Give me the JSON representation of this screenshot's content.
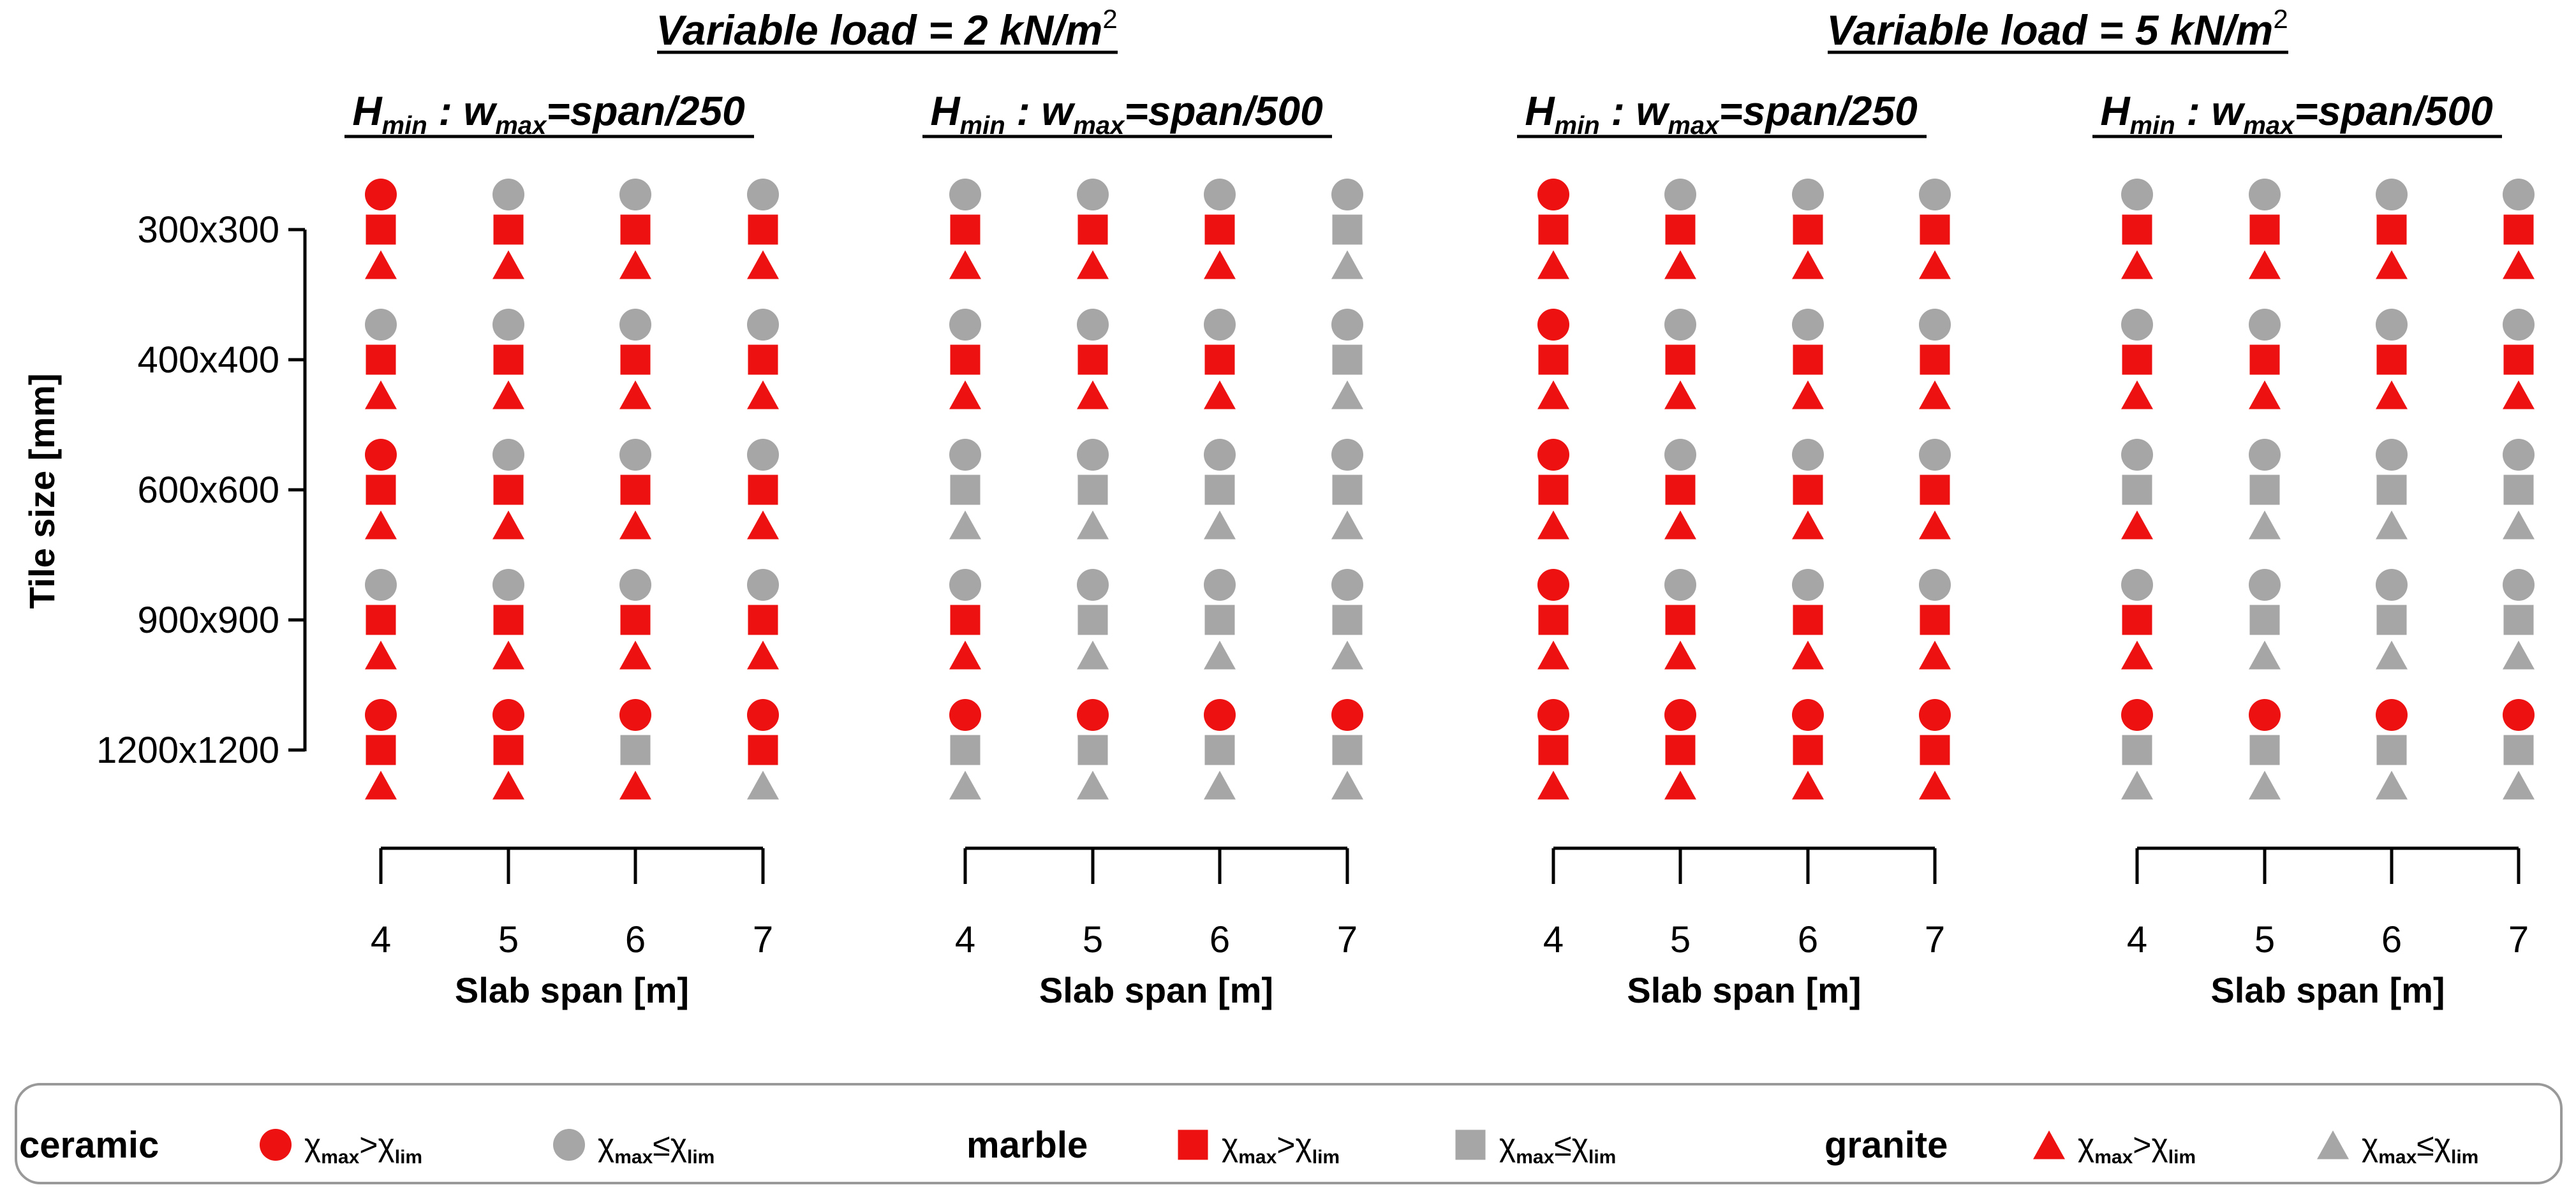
{
  "chart_data": {
    "type": "scatter",
    "description_y": "Tile size [mm]",
    "ylabel": "Tile size [mm]",
    "xlabel": "Slab span [m]",
    "tile_sizes": [
      "300x300",
      "400x400",
      "600x600",
      "900x900",
      "1200x1200"
    ],
    "spans": [
      "4",
      "5",
      "6",
      "7"
    ],
    "groups": [
      {
        "title_prefix": "Variable load = ",
        "title_value": "2 kN/m",
        "title_sup": "2"
      },
      {
        "title_prefix": "Variable load = ",
        "title_value": "5 kN/m",
        "title_sup": "2"
      }
    ],
    "panels": [
      {
        "group": 0,
        "criterion": {
          "h": "H",
          "h_sub": "min",
          "mid": " : w",
          "w_sub": "max",
          "rest": "=span/250"
        },
        "ceramic": [
          [
            1,
            0,
            0,
            0
          ],
          [
            0,
            0,
            0,
            0
          ],
          [
            1,
            0,
            0,
            0
          ],
          [
            0,
            0,
            0,
            0
          ],
          [
            1,
            1,
            1,
            1
          ]
        ],
        "marble": [
          [
            1,
            1,
            1,
            1
          ],
          [
            1,
            1,
            1,
            1
          ],
          [
            1,
            1,
            1,
            1
          ],
          [
            1,
            1,
            1,
            1
          ],
          [
            1,
            1,
            0,
            1
          ]
        ],
        "granite": [
          [
            1,
            1,
            1,
            1
          ],
          [
            1,
            1,
            1,
            1
          ],
          [
            1,
            1,
            1,
            1
          ],
          [
            1,
            1,
            1,
            1
          ],
          [
            1,
            1,
            1,
            0
          ]
        ]
      },
      {
        "group": 0,
        "criterion": {
          "h": "H",
          "h_sub": "min",
          "mid": " : w",
          "w_sub": "max",
          "rest": "=span/500"
        },
        "ceramic": [
          [
            0,
            0,
            0,
            0
          ],
          [
            0,
            0,
            0,
            0
          ],
          [
            0,
            0,
            0,
            0
          ],
          [
            0,
            0,
            0,
            0
          ],
          [
            1,
            1,
            1,
            1
          ]
        ],
        "marble": [
          [
            1,
            1,
            1,
            0
          ],
          [
            1,
            1,
            1,
            0
          ],
          [
            0,
            0,
            0,
            0
          ],
          [
            1,
            0,
            0,
            0
          ],
          [
            0,
            0,
            0,
            0
          ]
        ],
        "granite": [
          [
            1,
            1,
            1,
            0
          ],
          [
            1,
            1,
            1,
            0
          ],
          [
            0,
            0,
            0,
            0
          ],
          [
            1,
            0,
            0,
            0
          ],
          [
            0,
            0,
            0,
            0
          ]
        ]
      },
      {
        "group": 1,
        "criterion": {
          "h": "H",
          "h_sub": "min",
          "mid": " : w",
          "w_sub": "max",
          "rest": "=span/250"
        },
        "ceramic": [
          [
            1,
            0,
            0,
            0
          ],
          [
            1,
            0,
            0,
            0
          ],
          [
            1,
            0,
            0,
            0
          ],
          [
            1,
            0,
            0,
            0
          ],
          [
            1,
            1,
            1,
            1
          ]
        ],
        "marble": [
          [
            1,
            1,
            1,
            1
          ],
          [
            1,
            1,
            1,
            1
          ],
          [
            1,
            1,
            1,
            1
          ],
          [
            1,
            1,
            1,
            1
          ],
          [
            1,
            1,
            1,
            1
          ]
        ],
        "granite": [
          [
            1,
            1,
            1,
            1
          ],
          [
            1,
            1,
            1,
            1
          ],
          [
            1,
            1,
            1,
            1
          ],
          [
            1,
            1,
            1,
            1
          ],
          [
            1,
            1,
            1,
            1
          ]
        ]
      },
      {
        "group": 1,
        "criterion": {
          "h": "H",
          "h_sub": "min",
          "mid": " : w",
          "w_sub": "max",
          "rest": "=span/500"
        },
        "ceramic": [
          [
            0,
            0,
            0,
            0
          ],
          [
            0,
            0,
            0,
            0
          ],
          [
            0,
            0,
            0,
            0
          ],
          [
            0,
            0,
            0,
            0
          ],
          [
            1,
            1,
            1,
            1
          ]
        ],
        "marble": [
          [
            1,
            1,
            1,
            1
          ],
          [
            1,
            1,
            1,
            1
          ],
          [
            0,
            0,
            0,
            0
          ],
          [
            1,
            0,
            0,
            0
          ],
          [
            0,
            0,
            0,
            0
          ]
        ],
        "granite": [
          [
            1,
            1,
            1,
            1
          ],
          [
            1,
            1,
            1,
            1
          ],
          [
            1,
            0,
            0,
            0
          ],
          [
            1,
            0,
            0,
            0
          ],
          [
            0,
            0,
            0,
            0
          ]
        ]
      }
    ],
    "legend": {
      "materials": [
        {
          "name": "ceramic",
          "marker": "circle"
        },
        {
          "name": "marble",
          "marker": "square"
        },
        {
          "name": "granite",
          "marker": "triangle"
        }
      ],
      "exceed_label": {
        "a": "χ",
        "a_sub": "max",
        "op": ">",
        "b": "χ",
        "b_sub": "lim"
      },
      "ok_label": {
        "a": "χ",
        "a_sub": "max",
        "op": "≤",
        "b": "χ",
        "b_sub": "lim"
      }
    },
    "colors": {
      "exceed": "#ee1111",
      "ok": "#a6a6a6",
      "axis": "#000000"
    }
  }
}
